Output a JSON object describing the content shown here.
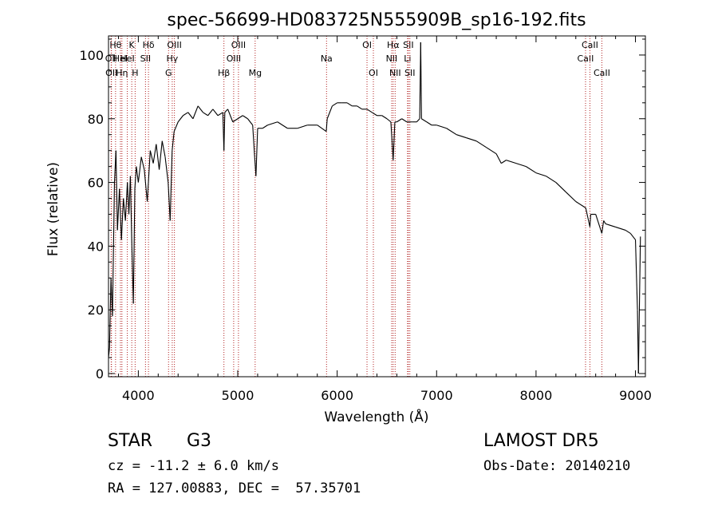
{
  "chart_data": {
    "type": "line",
    "title": "spec-56699-HD083725N555909B_sp16-192.fits",
    "xlabel": "Wavelength (Å)",
    "ylabel": "Flux (relative)",
    "xlim": [
      3700,
      9100
    ],
    "ylim": [
      -1,
      106
    ],
    "xticks": [
      4000,
      5000,
      6000,
      7000,
      8000,
      9000
    ],
    "yticks": [
      0,
      20,
      40,
      60,
      80,
      100
    ],
    "grid": false,
    "series": [
      {
        "values": [
          [
            3700,
            5
          ],
          [
            3710,
            8
          ],
          [
            3725,
            30
          ],
          [
            3740,
            18
          ],
          [
            3760,
            60
          ],
          [
            3775,
            70
          ],
          [
            3790,
            45
          ],
          [
            3810,
            58
          ],
          [
            3830,
            42
          ],
          [
            3850,
            55
          ],
          [
            3870,
            48
          ],
          [
            3890,
            60
          ],
          [
            3905,
            50
          ],
          [
            3920,
            62
          ],
          [
            3935,
            40
          ],
          [
            3950,
            22
          ],
          [
            3965,
            58
          ],
          [
            3980,
            65
          ],
          [
            4000,
            60
          ],
          [
            4030,
            68
          ],
          [
            4060,
            64
          ],
          [
            4090,
            54
          ],
          [
            4120,
            70
          ],
          [
            4150,
            66
          ],
          [
            4180,
            72
          ],
          [
            4210,
            64
          ],
          [
            4240,
            73
          ],
          [
            4270,
            68
          ],
          [
            4300,
            60
          ],
          [
            4320,
            48
          ],
          [
            4340,
            70
          ],
          [
            4360,
            76
          ],
          [
            4400,
            79
          ],
          [
            4450,
            81
          ],
          [
            4500,
            82
          ],
          [
            4550,
            80
          ],
          [
            4600,
            84
          ],
          [
            4650,
            82
          ],
          [
            4700,
            81
          ],
          [
            4750,
            83
          ],
          [
            4800,
            81
          ],
          [
            4850,
            82
          ],
          [
            4861,
            70
          ],
          [
            4870,
            82
          ],
          [
            4900,
            83
          ],
          [
            4950,
            79
          ],
          [
            5000,
            80
          ],
          [
            5050,
            81
          ],
          [
            5100,
            80
          ],
          [
            5150,
            78
          ],
          [
            5170,
            68
          ],
          [
            5183,
            62
          ],
          [
            5200,
            77
          ],
          [
            5250,
            77
          ],
          [
            5300,
            78
          ],
          [
            5400,
            79
          ],
          [
            5500,
            77
          ],
          [
            5600,
            77
          ],
          [
            5700,
            78
          ],
          [
            5800,
            78
          ],
          [
            5890,
            76
          ],
          [
            5900,
            80
          ],
          [
            5950,
            84
          ],
          [
            6000,
            85
          ],
          [
            6050,
            85
          ],
          [
            6100,
            85
          ],
          [
            6150,
            84
          ],
          [
            6200,
            84
          ],
          [
            6250,
            83
          ],
          [
            6300,
            83
          ],
          [
            6350,
            82
          ],
          [
            6400,
            81
          ],
          [
            6450,
            81
          ],
          [
            6500,
            80
          ],
          [
            6540,
            79
          ],
          [
            6563,
            67
          ],
          [
            6580,
            79
          ],
          [
            6600,
            79
          ],
          [
            6650,
            80
          ],
          [
            6700,
            79
          ],
          [
            6750,
            79
          ],
          [
            6800,
            79
          ],
          [
            6830,
            80
          ],
          [
            6840,
            104
          ],
          [
            6848,
            80
          ],
          [
            6900,
            79
          ],
          [
            6950,
            78
          ],
          [
            7000,
            78
          ],
          [
            7100,
            77
          ],
          [
            7200,
            75
          ],
          [
            7300,
            74
          ],
          [
            7400,
            73
          ],
          [
            7500,
            71
          ],
          [
            7600,
            69
          ],
          [
            7650,
            66
          ],
          [
            7700,
            67
          ],
          [
            7800,
            66
          ],
          [
            7900,
            65
          ],
          [
            8000,
            63
          ],
          [
            8100,
            62
          ],
          [
            8200,
            60
          ],
          [
            8300,
            57
          ],
          [
            8400,
            54
          ],
          [
            8500,
            52
          ],
          [
            8542,
            46
          ],
          [
            8550,
            50
          ],
          [
            8600,
            50
          ],
          [
            8662,
            44
          ],
          [
            8680,
            48
          ],
          [
            8700,
            47
          ],
          [
            8800,
            46
          ],
          [
            8900,
            45
          ],
          [
            8950,
            44
          ],
          [
            9000,
            42
          ],
          [
            9020,
            20
          ],
          [
            9030,
            0
          ],
          [
            9050,
            43
          ]
        ]
      }
    ],
    "line_markers": [
      {
        "wl": 3771,
        "name": "Hθ",
        "row": 0
      },
      {
        "wl": 3727,
        "name": "OII",
        "row": 1
      },
      {
        "wl": 3730,
        "name": "OII",
        "row": 2
      },
      {
        "wl": 3820,
        "name": "HeI",
        "row": 1
      },
      {
        "wl": 3835,
        "name": "Hη",
        "row": 2
      },
      {
        "wl": 3889,
        "name": "HeI",
        "row": 1
      },
      {
        "wl": 3934,
        "name": "K",
        "row": 0
      },
      {
        "wl": 3968,
        "name": "H",
        "row": 2
      },
      {
        "wl": 4072,
        "name": "SII",
        "row": 1
      },
      {
        "wl": 4102,
        "name": "Hδ",
        "row": 0
      },
      {
        "wl": 4304,
        "name": "G",
        "row": 2
      },
      {
        "wl": 4341,
        "name": "Hγ",
        "row": 1
      },
      {
        "wl": 4363,
        "name": "OIII",
        "row": 0
      },
      {
        "wl": 4861,
        "name": "Hβ",
        "row": 2
      },
      {
        "wl": 4959,
        "name": "OIII",
        "row": 1
      },
      {
        "wl": 5007,
        "name": "OIII",
        "row": 0
      },
      {
        "wl": 5175,
        "name": "Mg",
        "row": 2
      },
      {
        "wl": 5893,
        "name": "Na",
        "row": 1
      },
      {
        "wl": 6300,
        "name": "OI",
        "row": 0
      },
      {
        "wl": 6364,
        "name": "OI",
        "row": 2
      },
      {
        "wl": 6548,
        "name": "NII",
        "row": 1
      },
      {
        "wl": 6563,
        "name": "Hα",
        "row": 0
      },
      {
        "wl": 6583,
        "name": "NII",
        "row": 2
      },
      {
        "wl": 6708,
        "name": "Li",
        "row": 1
      },
      {
        "wl": 6716,
        "name": "SII",
        "row": 0
      },
      {
        "wl": 6731,
        "name": "SII",
        "row": 2
      },
      {
        "wl": 8498,
        "name": "CaII",
        "row": 1
      },
      {
        "wl": 8542,
        "name": "CaII",
        "row": 0
      },
      {
        "wl": 8662,
        "name": "CaII",
        "row": 2
      }
    ],
    "colors": {
      "spectrum": "#000000",
      "marker_lines": "#b22222",
      "frame": "#000000"
    }
  },
  "info": {
    "object_class": "STAR",
    "subclass": "G3",
    "survey": "LAMOST DR5",
    "cz": "cz = -11.2 ± 6.0 km/s",
    "obs_date": "Obs-Date: 20140210",
    "coords": "RA = 127.00883, DEC =  57.35701"
  }
}
